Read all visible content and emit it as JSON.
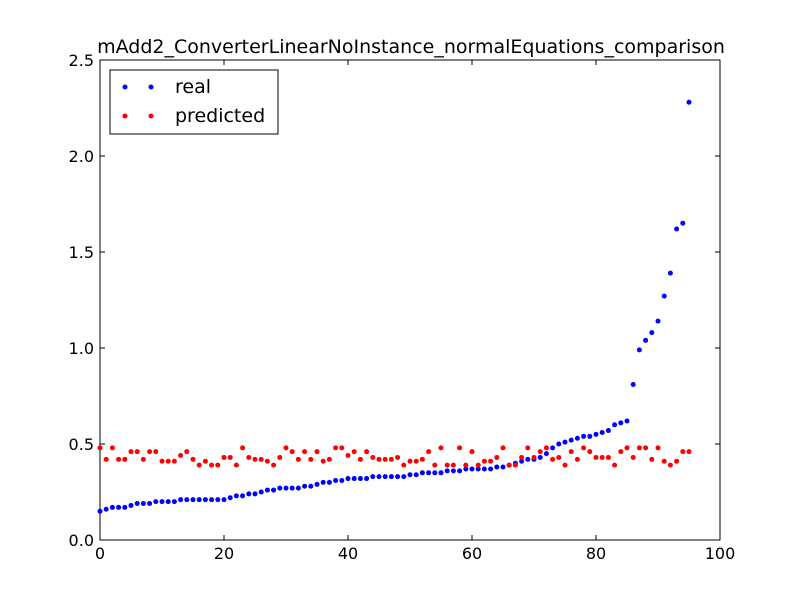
{
  "chart_data": {
    "type": "scatter",
    "title": "mAdd2_ConverterLinearNoInstance_normalEquations_comparison",
    "xlabel": "",
    "ylabel": "",
    "xlim": [
      0,
      100
    ],
    "ylim": [
      0.0,
      2.5
    ],
    "xticks": [
      0,
      20,
      40,
      60,
      80,
      100
    ],
    "xtick_labels": [
      "0",
      "20",
      "40",
      "60",
      "80",
      "100"
    ],
    "yticks": [
      0.0,
      0.5,
      1.0,
      1.5,
      2.0,
      2.5
    ],
    "ytick_labels": [
      "0.0",
      "0.5",
      "1.0",
      "1.5",
      "2.0",
      "2.5"
    ],
    "grid": false,
    "legend_position": "top-left",
    "series": [
      {
        "name": "real",
        "color": "#0000ff",
        "x": [
          0,
          1,
          2,
          3,
          4,
          5,
          6,
          7,
          8,
          9,
          10,
          11,
          12,
          13,
          14,
          15,
          16,
          17,
          18,
          19,
          20,
          21,
          22,
          23,
          24,
          25,
          26,
          27,
          28,
          29,
          30,
          31,
          32,
          33,
          34,
          35,
          36,
          37,
          38,
          39,
          40,
          41,
          42,
          43,
          44,
          45,
          46,
          47,
          48,
          49,
          50,
          51,
          52,
          53,
          54,
          55,
          56,
          57,
          58,
          59,
          60,
          61,
          62,
          63,
          64,
          65,
          66,
          67,
          68,
          69,
          70,
          71,
          72,
          73,
          74,
          75,
          76,
          77,
          78,
          79,
          80,
          81,
          82,
          83,
          84,
          85,
          86,
          87,
          88,
          89,
          90,
          91,
          92,
          93,
          94,
          95
        ],
        "y": [
          0.15,
          0.16,
          0.17,
          0.17,
          0.17,
          0.18,
          0.19,
          0.19,
          0.19,
          0.2,
          0.2,
          0.2,
          0.2,
          0.21,
          0.21,
          0.21,
          0.21,
          0.21,
          0.21,
          0.21,
          0.21,
          0.22,
          0.23,
          0.23,
          0.24,
          0.24,
          0.25,
          0.26,
          0.26,
          0.27,
          0.27,
          0.27,
          0.27,
          0.28,
          0.28,
          0.29,
          0.3,
          0.3,
          0.31,
          0.31,
          0.32,
          0.32,
          0.32,
          0.32,
          0.33,
          0.33,
          0.33,
          0.33,
          0.33,
          0.33,
          0.34,
          0.34,
          0.35,
          0.35,
          0.35,
          0.35,
          0.36,
          0.36,
          0.36,
          0.37,
          0.37,
          0.37,
          0.37,
          0.37,
          0.38,
          0.38,
          0.39,
          0.4,
          0.41,
          0.42,
          0.42,
          0.43,
          0.45,
          0.48,
          0.5,
          0.51,
          0.52,
          0.53,
          0.54,
          0.54,
          0.55,
          0.56,
          0.57,
          0.6,
          0.61,
          0.62,
          0.81,
          0.99,
          1.04,
          1.08,
          1.14,
          1.27,
          1.39,
          1.62,
          1.65,
          2.28
        ]
      },
      {
        "name": "predicted",
        "color": "#ff0000",
        "x": [
          0,
          1,
          2,
          3,
          4,
          5,
          6,
          7,
          8,
          9,
          10,
          11,
          12,
          13,
          14,
          15,
          16,
          17,
          18,
          19,
          20,
          21,
          22,
          23,
          24,
          25,
          26,
          27,
          28,
          29,
          30,
          31,
          32,
          33,
          34,
          35,
          36,
          37,
          38,
          39,
          40,
          41,
          42,
          43,
          44,
          45,
          46,
          47,
          48,
          49,
          50,
          51,
          52,
          53,
          54,
          55,
          56,
          57,
          58,
          59,
          60,
          61,
          62,
          63,
          64,
          65,
          66,
          67,
          68,
          69,
          70,
          71,
          72,
          73,
          74,
          75,
          76,
          77,
          78,
          79,
          80,
          81,
          82,
          83,
          84,
          85,
          86,
          87,
          88,
          89,
          90,
          91,
          92,
          93,
          94,
          95
        ],
        "y": [
          0.48,
          0.42,
          0.48,
          0.42,
          0.42,
          0.46,
          0.46,
          0.42,
          0.46,
          0.46,
          0.41,
          0.41,
          0.41,
          0.44,
          0.46,
          0.42,
          0.39,
          0.41,
          0.39,
          0.39,
          0.43,
          0.43,
          0.39,
          0.48,
          0.43,
          0.42,
          0.42,
          0.41,
          0.39,
          0.43,
          0.48,
          0.46,
          0.42,
          0.46,
          0.42,
          0.46,
          0.41,
          0.42,
          0.48,
          0.48,
          0.44,
          0.46,
          0.42,
          0.46,
          0.43,
          0.42,
          0.42,
          0.42,
          0.43,
          0.39,
          0.41,
          0.41,
          0.42,
          0.46,
          0.39,
          0.48,
          0.39,
          0.39,
          0.48,
          0.39,
          0.46,
          0.39,
          0.41,
          0.41,
          0.43,
          0.48,
          0.39,
          0.39,
          0.43,
          0.48,
          0.43,
          0.46,
          0.48,
          0.42,
          0.43,
          0.39,
          0.46,
          0.42,
          0.48,
          0.46,
          0.43,
          0.43,
          0.43,
          0.39,
          0.46,
          0.48,
          0.43,
          0.48,
          0.48,
          0.42,
          0.48,
          0.41,
          0.39,
          0.41,
          0.46,
          0.46
        ]
      }
    ]
  }
}
